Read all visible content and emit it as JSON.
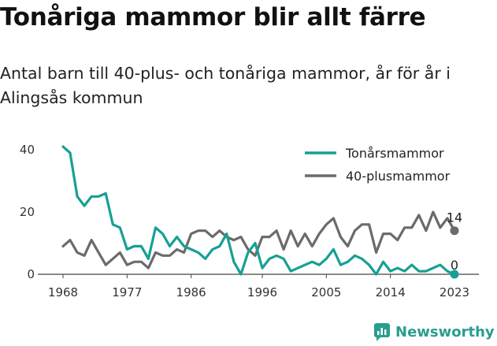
{
  "title": "Tonåriga mammor blir allt färre",
  "subtitle": "Antal barn till 40-plus- och tonåriga mammor, år för år i Alingsås kommun",
  "logo": {
    "text": "Newsworthy",
    "icon": "newsworthy-logo-icon",
    "color": "#2a9d8f"
  },
  "chart_data": {
    "type": "line",
    "x_ticks": [
      "1968",
      "1977",
      "1986",
      "1996",
      "2005",
      "2014",
      "2023"
    ],
    "y_ticks": [
      "0",
      "20",
      "40"
    ],
    "ylim": [
      0,
      40
    ],
    "xlim": [
      1968,
      2023
    ],
    "grid": false,
    "legend": "top-right",
    "x": [
      1968,
      1969,
      1970,
      1971,
      1972,
      1973,
      1974,
      1975,
      1976,
      1977,
      1978,
      1979,
      1980,
      1981,
      1982,
      1983,
      1984,
      1985,
      1986,
      1987,
      1988,
      1989,
      1990,
      1991,
      1992,
      1993,
      1994,
      1995,
      1996,
      1997,
      1998,
      1999,
      2000,
      2001,
      2002,
      2003,
      2004,
      2005,
      2006,
      2007,
      2008,
      2009,
      2010,
      2011,
      2012,
      2013,
      2014,
      2015,
      2016,
      2017,
      2018,
      2019,
      2020,
      2021,
      2022,
      2023
    ],
    "series": [
      {
        "name": "Tonårsmammor",
        "color": "#16a094",
        "end_label": "0",
        "values": [
          41,
          39,
          25,
          22,
          25,
          25,
          26,
          16,
          15,
          8,
          9,
          9,
          5,
          15,
          13,
          9,
          12,
          9,
          8,
          7,
          5,
          8,
          9,
          13,
          4,
          0,
          7,
          10,
          2,
          5,
          6,
          5,
          1,
          2,
          3,
          4,
          3,
          5,
          8,
          3,
          4,
          6,
          5,
          3,
          0,
          4,
          1,
          2,
          1,
          3,
          1,
          1,
          2,
          3,
          1,
          0
        ]
      },
      {
        "name": "40-plusmammor",
        "color": "#6b6b6b",
        "end_label": "14",
        "values": [
          9,
          11,
          7,
          6,
          11,
          7,
          3,
          5,
          7,
          3,
          4,
          4,
          2,
          7,
          6,
          6,
          8,
          7,
          13,
          14,
          14,
          12,
          14,
          12,
          11,
          12,
          8,
          6,
          12,
          12,
          14,
          8,
          14,
          9,
          13,
          9,
          13,
          16,
          18,
          12,
          9,
          14,
          16,
          16,
          7,
          13,
          13,
          11,
          15,
          15,
          19,
          14,
          20,
          15,
          18,
          14
        ]
      }
    ]
  }
}
